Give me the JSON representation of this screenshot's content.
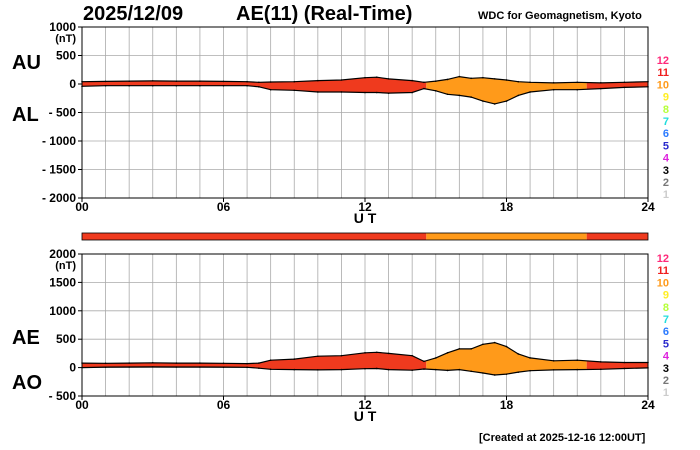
{
  "header": {
    "date": "2025/12/09",
    "title": "AE(11) (Real-Time)",
    "source": "WDC for Geomagnetism, Kyoto",
    "created": "[Created at 2025-12-16 12:00UT]"
  },
  "colors": {
    "activity_low": "#ef3a1e",
    "activity_high": "#ff9a1a",
    "line": "#000000",
    "grid": "#aaaaaa"
  },
  "activity_levels": [
    {
      "label": "12",
      "color": "#ff2a7a"
    },
    {
      "label": "11",
      "color": "#f01e1e"
    },
    {
      "label": "10",
      "color": "#ff9a1a"
    },
    {
      "label": "9",
      "color": "#ffee22"
    },
    {
      "label": "8",
      "color": "#b6ff3a"
    },
    {
      "label": "7",
      "color": "#22dddd"
    },
    {
      "label": "6",
      "color": "#2a7aff"
    },
    {
      "label": "5",
      "color": "#2a2acc"
    },
    {
      "label": "4",
      "color": "#dd22dd"
    },
    {
      "label": "3",
      "color": "#000000"
    },
    {
      "label": "2",
      "color": "#777777"
    },
    {
      "label": "1",
      "color": "#cccccc"
    }
  ],
  "activity_bar": [
    {
      "from": 0,
      "to": 14.6,
      "level": "11"
    },
    {
      "from": 14.6,
      "to": 21.4,
      "level": "10"
    },
    {
      "from": 21.4,
      "to": 24,
      "level": "11"
    }
  ],
  "chart_data": [
    {
      "type": "area",
      "name": "AU/AL panel",
      "labels": {
        "upper": "AU",
        "lower": "AL"
      },
      "unit": "(nT)",
      "xlabel": "U T",
      "xlim": [
        0,
        24
      ],
      "ylim": [
        -2000,
        1000
      ],
      "xticks": [
        0,
        6,
        12,
        18,
        24
      ],
      "xtick_labels": [
        "00",
        "06",
        "12",
        "18",
        "24"
      ],
      "yticks": [
        1000,
        500,
        0,
        -500,
        -1000,
        -1500,
        -2000
      ],
      "ytick_labels": [
        "1000",
        "500",
        "0",
        "- 500",
        "- 1000",
        "- 1500",
        "- 2000"
      ],
      "grid": true,
      "x": [
        0,
        1,
        2,
        3,
        4,
        5,
        6,
        7,
        7.5,
        8,
        9,
        10,
        11,
        12,
        12.5,
        13,
        14,
        14.5,
        15,
        15.5,
        16,
        16.5,
        17,
        17.5,
        18,
        18.5,
        19,
        20,
        21,
        22,
        23,
        24
      ],
      "series": [
        {
          "name": "AU",
          "values": [
            40,
            45,
            50,
            55,
            50,
            50,
            45,
            40,
            30,
            35,
            40,
            60,
            70,
            110,
            120,
            90,
            60,
            30,
            50,
            80,
            130,
            100,
            110,
            90,
            70,
            40,
            30,
            20,
            30,
            20,
            30,
            40
          ]
        },
        {
          "name": "AL",
          "values": [
            -40,
            -30,
            -30,
            -30,
            -30,
            -30,
            -30,
            -30,
            -50,
            -100,
            -110,
            -140,
            -140,
            -150,
            -150,
            -160,
            -150,
            -80,
            -120,
            -180,
            -200,
            -230,
            -300,
            -350,
            -300,
            -200,
            -140,
            -100,
            -100,
            -80,
            -60,
            -50
          ]
        }
      ]
    },
    {
      "type": "area",
      "name": "AE/AO panel",
      "labels": {
        "upper": "AE",
        "lower": "AO"
      },
      "unit": "(nT)",
      "xlabel": "U T",
      "xlim": [
        0,
        24
      ],
      "ylim": [
        -500,
        2000
      ],
      "xticks": [
        0,
        6,
        12,
        18,
        24
      ],
      "xtick_labels": [
        "00",
        "06",
        "12",
        "18",
        "24"
      ],
      "yticks": [
        2000,
        1500,
        1000,
        500,
        0,
        -500
      ],
      "ytick_labels": [
        "2000",
        "1500",
        "1000",
        "500",
        "0",
        "- 500"
      ],
      "grid": true,
      "x": [
        0,
        1,
        2,
        3,
        4,
        5,
        6,
        7,
        7.5,
        8,
        9,
        10,
        11,
        12,
        12.5,
        13,
        14,
        14.5,
        15,
        15.5,
        16,
        16.5,
        17,
        17.5,
        18,
        18.5,
        19,
        20,
        21,
        22,
        23,
        24
      ],
      "series": [
        {
          "name": "AE",
          "values": [
            80,
            75,
            80,
            85,
            80,
            80,
            75,
            70,
            80,
            130,
            150,
            200,
            210,
            260,
            270,
            250,
            210,
            110,
            170,
            260,
            330,
            330,
            410,
            440,
            370,
            240,
            170,
            120,
            130,
            100,
            90,
            90
          ]
        },
        {
          "name": "AO",
          "values": [
            0,
            8,
            10,
            12,
            10,
            10,
            8,
            5,
            -10,
            -30,
            -35,
            -40,
            -35,
            -20,
            -15,
            -35,
            -45,
            -25,
            -35,
            -50,
            -35,
            -65,
            -95,
            -130,
            -115,
            -80,
            -55,
            -40,
            -35,
            -30,
            -15,
            -5
          ]
        }
      ]
    }
  ]
}
